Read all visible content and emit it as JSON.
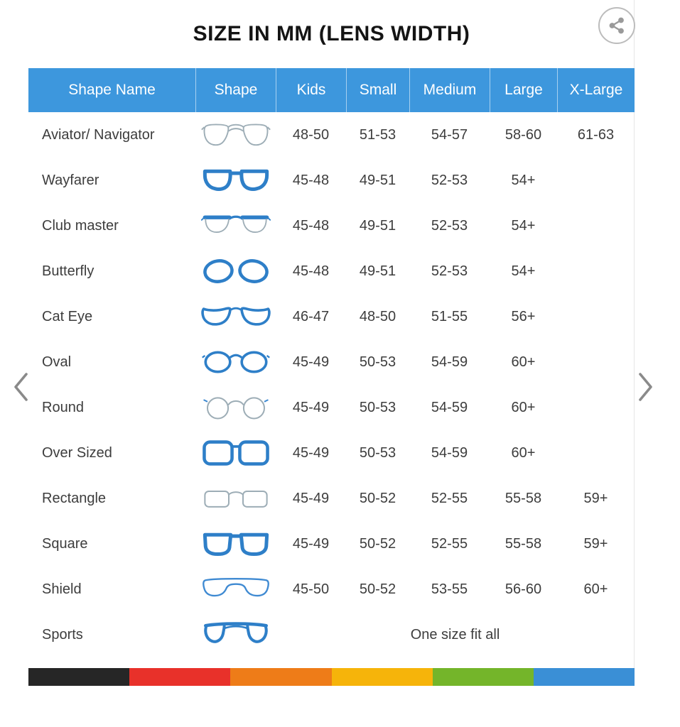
{
  "page": {
    "title": "SIZE IN MM (LENS WIDTH)"
  },
  "toolbar": {
    "share_icon": "share-icon"
  },
  "carousel": {
    "prev_icon": "chevron-left-icon",
    "next_icon": "chevron-right-icon"
  },
  "table": {
    "columns": [
      "Shape Name",
      "Shape",
      "Kids",
      "Small",
      "Medium",
      "Large",
      "X-Large"
    ],
    "rows": [
      {
        "shape_name": "Aviator/ Navigator",
        "icon": "aviator-glasses",
        "kids": "48-50",
        "small": "51-53",
        "medium": "54-57",
        "large": "58-60",
        "xlarge": "61-63"
      },
      {
        "shape_name": "Wayfarer",
        "icon": "wayfarer-glasses",
        "kids": "45-48",
        "small": "49-51",
        "medium": "52-53",
        "large": "54+",
        "xlarge": ""
      },
      {
        "shape_name": "Club master",
        "icon": "clubmaster-glasses",
        "kids": "45-48",
        "small": "49-51",
        "medium": "52-53",
        "large": "54+",
        "xlarge": ""
      },
      {
        "shape_name": "Butterfly",
        "icon": "butterfly-glasses",
        "kids": "45-48",
        "small": "49-51",
        "medium": "52-53",
        "large": "54+",
        "xlarge": ""
      },
      {
        "shape_name": "Cat Eye",
        "icon": "cateye-glasses",
        "kids": "46-47",
        "small": "48-50",
        "medium": "51-55",
        "large": "56+",
        "xlarge": ""
      },
      {
        "shape_name": "Oval",
        "icon": "oval-glasses",
        "kids": "45-49",
        "small": "50-53",
        "medium": "54-59",
        "large": "60+",
        "xlarge": ""
      },
      {
        "shape_name": "Round",
        "icon": "round-glasses",
        "kids": "45-49",
        "small": "50-53",
        "medium": "54-59",
        "large": "60+",
        "xlarge": ""
      },
      {
        "shape_name": "Over Sized",
        "icon": "oversized-glasses",
        "kids": "45-49",
        "small": "50-53",
        "medium": "54-59",
        "large": "60+",
        "xlarge": ""
      },
      {
        "shape_name": "Rectangle",
        "icon": "rectangle-glasses",
        "kids": "45-49",
        "small": "50-52",
        "medium": "52-55",
        "large": "55-58",
        "xlarge": "59+"
      },
      {
        "shape_name": "Square",
        "icon": "square-glasses",
        "kids": "45-49",
        "small": "50-52",
        "medium": "52-55",
        "large": "55-58",
        "xlarge": "59+"
      },
      {
        "shape_name": "Shield",
        "icon": "shield-glasses",
        "kids": "45-50",
        "small": "50-52",
        "medium": "53-55",
        "large": "56-60",
        "xlarge": "60+"
      },
      {
        "shape_name": "Sports",
        "icon": "sports-glasses",
        "span_text": "One size fit all"
      }
    ]
  },
  "colors": {
    "header_bg": "#3d97dd",
    "frame_blue": "#2e7fc8",
    "frame_outline_gray": "#9dadb6",
    "shield_blue": "#3f8ad2",
    "bar_segments": [
      "#262626",
      "#e8312a",
      "#ee7c18",
      "#f6b40a",
      "#74b52a",
      "#3a8fd6"
    ]
  }
}
